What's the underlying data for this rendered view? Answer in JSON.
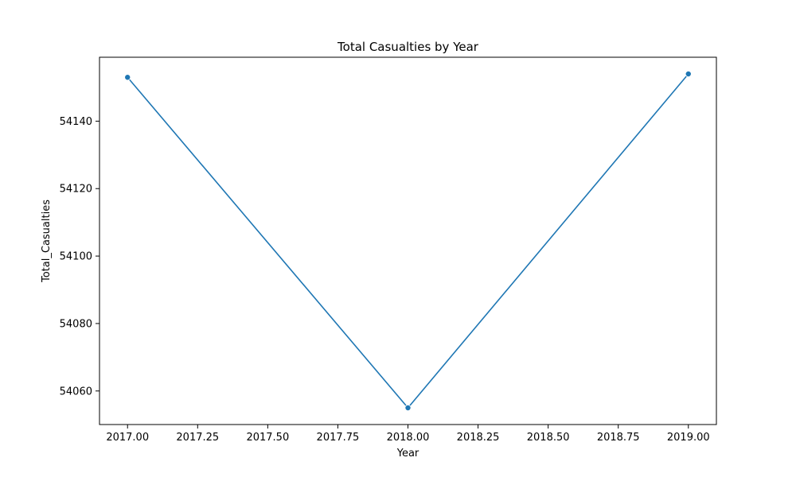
{
  "chart_data": {
    "type": "line",
    "title": "Total Casualties by Year",
    "xlabel": "Year",
    "ylabel": "Total_Casualties",
    "x": [
      2017,
      2018,
      2019
    ],
    "series": [
      {
        "values": [
          54153,
          54055,
          54154
        ]
      }
    ],
    "xlim": [
      2016.9,
      2019.1
    ],
    "ylim": [
      54050.05,
      54158.95
    ],
    "x_ticks": [
      2017.0,
      2017.25,
      2017.5,
      2017.75,
      2018.0,
      2018.25,
      2018.5,
      2018.75,
      2019.0
    ],
    "x_tick_labels": [
      "2017.00",
      "2017.25",
      "2017.50",
      "2017.75",
      "2018.00",
      "2018.25",
      "2018.50",
      "2018.75",
      "2019.00"
    ],
    "y_ticks": [
      54060,
      54080,
      54100,
      54120,
      54140
    ],
    "y_tick_labels": [
      "54060",
      "54080",
      "54100",
      "54120",
      "54140"
    ],
    "grid": false,
    "markers": true,
    "colors": {
      "line": "#1f77b4",
      "axis": "#000000",
      "background": "#ffffff"
    }
  }
}
